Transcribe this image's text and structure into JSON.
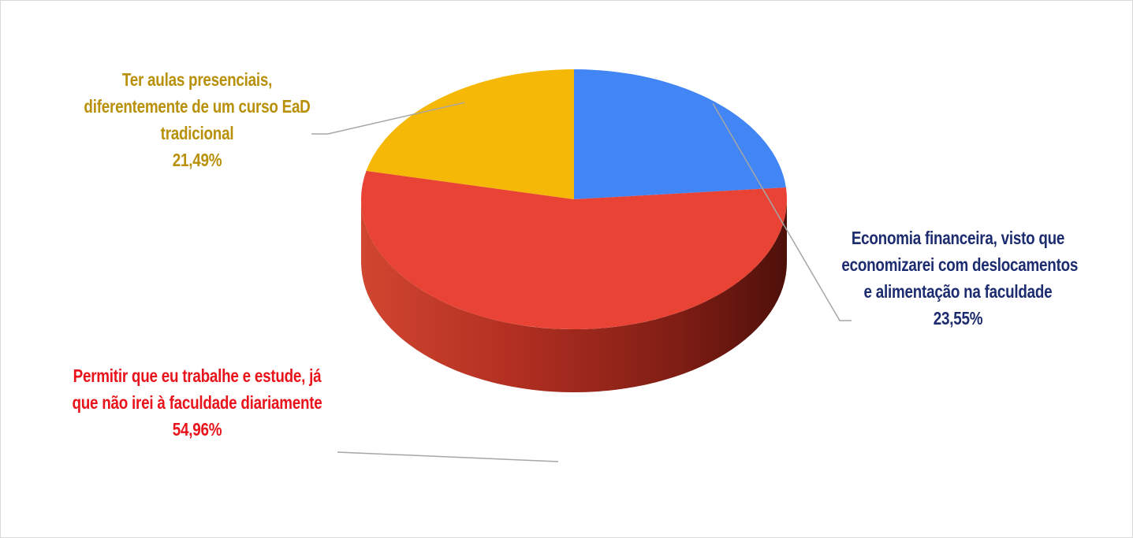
{
  "chart_data": {
    "type": "pie",
    "style": "3d",
    "slices": [
      {
        "lines": [
          "Economia financeira, visto que",
          "economizarei com deslocamentos",
          "e alimentação na faculdade"
        ],
        "percent_label": "23,55%",
        "value": 23.55,
        "color": "#4285f4",
        "label_color": "#1c2c6e"
      },
      {
        "lines": [
          "Permitir que eu trabalhe e estude, já",
          "que não irei à faculdade diariamente"
        ],
        "percent_label": "54,96%",
        "value": 54.96,
        "color": "#e94335",
        "label_color": "#e8131b"
      },
      {
        "lines": [
          "Ter aulas presenciais,",
          "diferentemente de um curso EaD",
          "tradicional"
        ],
        "percent_label": "21,49%",
        "value": 21.49,
        "color": "#f6b806",
        "label_color": "#b8900a"
      }
    ]
  }
}
